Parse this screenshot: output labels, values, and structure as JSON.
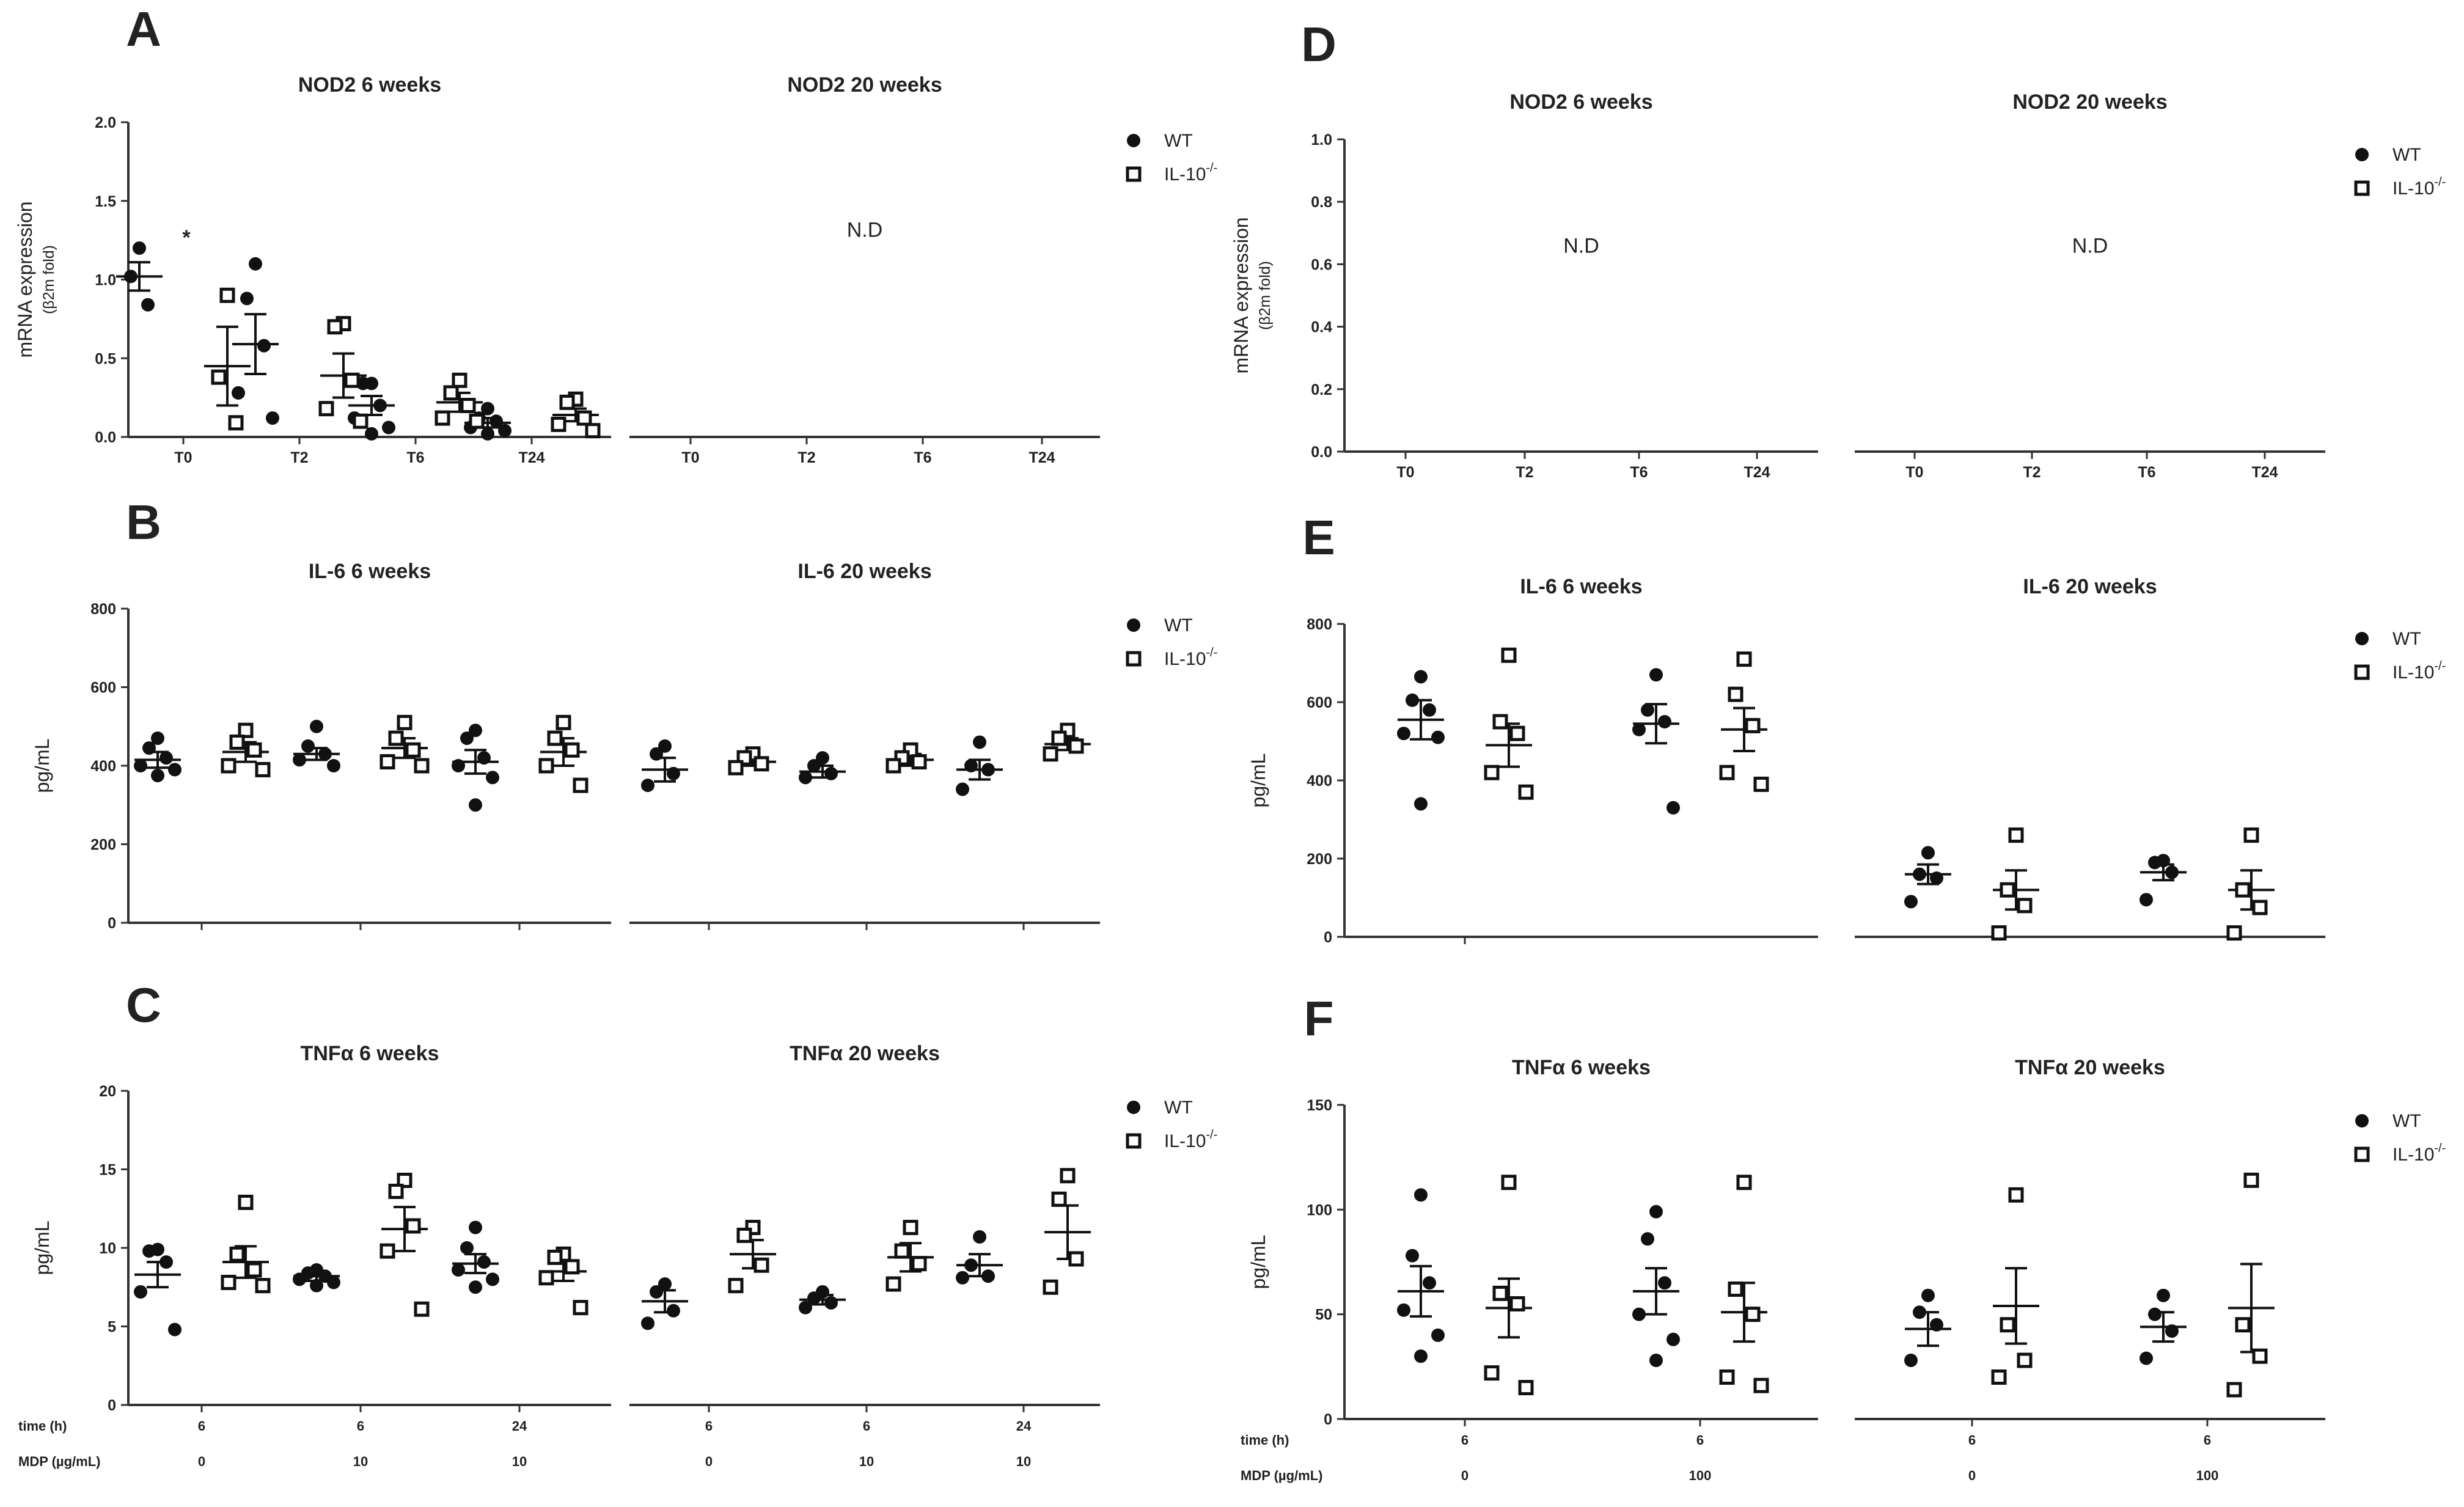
{
  "panel_labels": [
    "A",
    "B",
    "C",
    "D",
    "E",
    "F"
  ],
  "legend": {
    "wt": "WT",
    "ko_base": "IL-10",
    "ko_sup": "-/-"
  },
  "nd_text": "N.D",
  "asterisk": "*",
  "row_labels": {
    "time": "time (h)",
    "mdp": "MDP (µg/mL)"
  },
  "colors": {
    "ink": "#111111",
    "axis": "#333333",
    "text": "#222222",
    "background": "#ffffff"
  },
  "chart_data": [
    {
      "id": "A1",
      "type": "scatter",
      "title": "NOD2 6 weeks",
      "ylabel": "mRNA expression",
      "ylabel_sub": "(β2m fold)",
      "ylim": [
        0,
        2.0
      ],
      "yticks": [
        "0.0",
        "0.5",
        "1.0",
        "1.5",
        "2.0"
      ],
      "categories": [
        "T0",
        "T2",
        "T6",
        "T24"
      ],
      "series": [
        {
          "name": "WT",
          "groups": [
            {
              "mean": 1.02,
              "sem": 0.09,
              "points": [
                1.2,
                1.02,
                0.84
              ]
            },
            {
              "mean": 0.59,
              "sem": 0.19,
              "points": [
                1.1,
                0.88,
                0.58,
                0.28,
                0.12
              ]
            },
            {
              "mean": 0.2,
              "sem": 0.06,
              "points": [
                0.34,
                0.34,
                0.2,
                0.12,
                0.06,
                0.02
              ]
            },
            {
              "mean": 0.09,
              "sem": 0.03,
              "points": [
                0.18,
                0.12,
                0.1,
                0.06,
                0.04,
                0.02
              ]
            }
          ]
        },
        {
          "name": "IL-10-/-",
          "groups": [
            {
              "mean": 0.45,
              "sem": 0.25,
              "points": [
                0.9,
                0.38,
                0.09
              ]
            },
            {
              "mean": 0.39,
              "sem": 0.14,
              "points": [
                0.72,
                0.7,
                0.36,
                0.18,
                0.1
              ]
            },
            {
              "mean": 0.22,
              "sem": 0.06,
              "points": [
                0.36,
                0.28,
                0.2,
                0.12,
                0.1
              ]
            },
            {
              "mean": 0.14,
              "sem": 0.04,
              "points": [
                0.24,
                0.22,
                0.12,
                0.08,
                0.04
              ]
            }
          ]
        }
      ]
    },
    {
      "id": "A2",
      "type": "scatter",
      "title": "NOD2 20 weeks",
      "note": "N.D",
      "categories": [
        "T0",
        "T2",
        "T6",
        "T24"
      ],
      "series": []
    },
    {
      "id": "B1",
      "type": "scatter",
      "title": "IL-6 6 weeks",
      "ylabel": "pg/mL",
      "ylim": [
        0,
        800
      ],
      "yticks": [
        "0",
        "200",
        "400",
        "600",
        "800"
      ],
      "categories": [
        "",
        "",
        ""
      ],
      "series": [
        {
          "name": "WT",
          "groups": [
            {
              "mean": 415,
              "sem": 20,
              "points": [
                470,
                445,
                420,
                400,
                390,
                375
              ]
            },
            {
              "mean": 430,
              "sem": 15,
              "points": [
                500,
                450,
                430,
                415,
                400
              ]
            },
            {
              "mean": 410,
              "sem": 30,
              "points": [
                490,
                470,
                420,
                400,
                370,
                300
              ]
            }
          ]
        },
        {
          "name": "IL-10-/-",
          "groups": [
            {
              "mean": 435,
              "sem": 25,
              "points": [
                490,
                460,
                440,
                400,
                390
              ]
            },
            {
              "mean": 445,
              "sem": 25,
              "points": [
                510,
                470,
                440,
                410,
                400
              ]
            },
            {
              "mean": 435,
              "sem": 35,
              "points": [
                510,
                470,
                440,
                400,
                350
              ]
            }
          ]
        }
      ]
    },
    {
      "id": "B2",
      "type": "scatter",
      "title": "IL-6 20 weeks",
      "ylim": [
        0,
        800
      ],
      "categories": [
        "",
        "",
        ""
      ],
      "series": [
        {
          "name": "WT",
          "groups": [
            {
              "mean": 390,
              "sem": 30,
              "points": [
                450,
                430,
                380,
                350
              ]
            },
            {
              "mean": 385,
              "sem": 15,
              "points": [
                420,
                400,
                380,
                370
              ]
            },
            {
              "mean": 390,
              "sem": 25,
              "points": [
                460,
                400,
                390,
                340
              ]
            }
          ]
        },
        {
          "name": "IL-10-/-",
          "groups": [
            {
              "mean": 410,
              "sem": 10,
              "points": [
                430,
                420,
                405,
                395
              ]
            },
            {
              "mean": 415,
              "sem": 15,
              "points": [
                440,
                420,
                410,
                400
              ]
            },
            {
              "mean": 455,
              "sem": 15,
              "points": [
                490,
                470,
                450,
                430
              ]
            }
          ]
        }
      ]
    },
    {
      "id": "C1",
      "type": "scatter",
      "title": "TNFα 6 weeks",
      "ylabel": "pg/mL",
      "ylim": [
        0,
        20
      ],
      "yticks": [
        "0",
        "5",
        "10",
        "15",
        "20"
      ],
      "categories": [
        "6",
        "6",
        "24"
      ],
      "row_time": [
        "6",
        "6",
        "24"
      ],
      "row_mdp": [
        "0",
        "10",
        "10"
      ],
      "series": [
        {
          "name": "WT",
          "groups": [
            {
              "mean": 8.3,
              "sem": 0.8,
              "points": [
                9.9,
                9.8,
                9.1,
                7.2,
                4.8
              ]
            },
            {
              "mean": 8.2,
              "sem": 0.3,
              "points": [
                8.6,
                8.4,
                8.2,
                8.0,
                7.8,
                7.6
              ]
            },
            {
              "mean": 9.0,
              "sem": 0.6,
              "points": [
                11.3,
                10.0,
                9.1,
                8.6,
                8.0,
                7.5
              ]
            }
          ]
        },
        {
          "name": "IL-10-/-",
          "groups": [
            {
              "mean": 9.1,
              "sem": 1.0,
              "points": [
                12.9,
                9.6,
                8.6,
                7.8,
                7.6
              ]
            },
            {
              "mean": 11.2,
              "sem": 1.4,
              "points": [
                14.3,
                13.6,
                11.4,
                9.8,
                6.1
              ]
            },
            {
              "mean": 8.5,
              "sem": 0.6,
              "points": [
                9.6,
                9.4,
                8.8,
                8.1,
                6.2
              ]
            }
          ]
        }
      ]
    },
    {
      "id": "C2",
      "type": "scatter",
      "title": "TNFα 20 weeks",
      "ylim": [
        0,
        20
      ],
      "categories": [
        "6",
        "6",
        "24"
      ],
      "row_time": [
        "6",
        "6",
        "24"
      ],
      "row_mdp": [
        "0",
        "10",
        "10"
      ],
      "series": [
        {
          "name": "WT",
          "groups": [
            {
              "mean": 6.6,
              "sem": 0.7,
              "points": [
                7.7,
                7.2,
                6.0,
                5.2
              ]
            },
            {
              "mean": 6.7,
              "sem": 0.3,
              "points": [
                7.2,
                6.8,
                6.5,
                6.2
              ]
            },
            {
              "mean": 8.9,
              "sem": 0.7,
              "points": [
                10.7,
                8.9,
                8.2,
                8.1
              ]
            }
          ]
        },
        {
          "name": "IL-10-/-",
          "groups": [
            {
              "mean": 9.6,
              "sem": 0.9,
              "points": [
                11.3,
                10.8,
                8.9,
                7.6
              ]
            },
            {
              "mean": 9.4,
              "sem": 0.9,
              "points": [
                11.3,
                9.8,
                9.0,
                7.7
              ]
            },
            {
              "mean": 11.0,
              "sem": 1.7,
              "points": [
                14.6,
                13.1,
                9.3,
                7.5
              ]
            }
          ]
        }
      ]
    },
    {
      "id": "D1",
      "type": "scatter",
      "title": "NOD2 6 weeks",
      "note": "N.D",
      "ylabel": "mRNA expression",
      "ylabel_sub": "(β2m fold)",
      "ylim": [
        0,
        1.0
      ],
      "yticks": [
        "0.0",
        "0.2",
        "0.4",
        "0.6",
        "0.8",
        "1.0"
      ],
      "categories": [
        "T0",
        "T2",
        "T6",
        "T24"
      ],
      "series": []
    },
    {
      "id": "D2",
      "type": "scatter",
      "title": "NOD2 20 weeks",
      "note": "N.D",
      "categories": [
        "T0",
        "T2",
        "T6",
        "T24"
      ],
      "series": []
    },
    {
      "id": "E1",
      "type": "scatter",
      "title": "IL-6 6 weeks",
      "ylabel": "pg/mL",
      "ylim": [
        0,
        800
      ],
      "yticks": [
        "0",
        "200",
        "400",
        "600",
        "800"
      ],
      "categories": [
        "",
        ""
      ],
      "series": [
        {
          "name": "WT",
          "groups": [
            {
              "mean": 555,
              "sem": 50,
              "points": [
                665,
                605,
                580,
                520,
                510,
                340
              ]
            },
            {
              "mean": 545,
              "sem": 50,
              "points": [
                670,
                580,
                550,
                530,
                330
              ]
            }
          ]
        },
        {
          "name": "IL-10-/-",
          "groups": [
            {
              "mean": 490,
              "sem": 55,
              "points": [
                720,
                550,
                520,
                420,
                370
              ]
            },
            {
              "mean": 530,
              "sem": 55,
              "points": [
                710,
                620,
                540,
                420,
                390
              ]
            }
          ]
        }
      ]
    },
    {
      "id": "E2",
      "type": "scatter",
      "title": "IL-6 20 weeks",
      "ylim": [
        0,
        800
      ],
      "categories": [
        "",
        ""
      ],
      "series": [
        {
          "name": "WT",
          "groups": [
            {
              "mean": 160,
              "sem": 25,
              "points": [
                215,
                160,
                150,
                90
              ]
            },
            {
              "mean": 165,
              "sem": 20,
              "points": [
                195,
                190,
                165,
                95
              ]
            }
          ]
        },
        {
          "name": "IL-10-/-",
          "groups": [
            {
              "mean": 120,
              "sem": 50,
              "points": [
                260,
                120,
                80,
                10
              ]
            },
            {
              "mean": 120,
              "sem": 50,
              "points": [
                260,
                120,
                75,
                10
              ]
            }
          ]
        }
      ]
    },
    {
      "id": "F1",
      "type": "scatter",
      "title": "TNFα 6 weeks",
      "ylabel": "pg/mL",
      "ylim": [
        0,
        150
      ],
      "yticks": [
        "0",
        "50",
        "100",
        "150"
      ],
      "categories": [
        "6",
        "6"
      ],
      "row_time": [
        "6",
        "6"
      ],
      "row_mdp": [
        "0",
        "100"
      ],
      "series": [
        {
          "name": "WT",
          "groups": [
            {
              "mean": 61,
              "sem": 12,
              "points": [
                107,
                78,
                65,
                52,
                40,
                30
              ]
            },
            {
              "mean": 61,
              "sem": 11,
              "points": [
                99,
                86,
                65,
                50,
                38,
                28
              ]
            }
          ]
        },
        {
          "name": "IL-10-/-",
          "groups": [
            {
              "mean": 53,
              "sem": 14,
              "points": [
                113,
                60,
                55,
                22,
                15
              ]
            },
            {
              "mean": 51,
              "sem": 14,
              "points": [
                113,
                62,
                50,
                20,
                16
              ]
            }
          ]
        }
      ]
    },
    {
      "id": "F2",
      "type": "scatter",
      "title": "TNFα 20 weeks",
      "ylim": [
        0,
        150
      ],
      "categories": [
        "6",
        "6"
      ],
      "row_time": [
        "6",
        "6"
      ],
      "row_mdp": [
        "0",
        "100"
      ],
      "series": [
        {
          "name": "WT",
          "groups": [
            {
              "mean": 43,
              "sem": 8,
              "points": [
                59,
                51,
                45,
                28
              ]
            },
            {
              "mean": 44,
              "sem": 7,
              "points": [
                59,
                50,
                42,
                29
              ]
            }
          ]
        },
        {
          "name": "IL-10-/-",
          "groups": [
            {
              "mean": 54,
              "sem": 18,
              "points": [
                107,
                45,
                28,
                20
              ]
            },
            {
              "mean": 53,
              "sem": 21,
              "points": [
                114,
                45,
                30,
                14
              ]
            }
          ]
        }
      ]
    }
  ]
}
